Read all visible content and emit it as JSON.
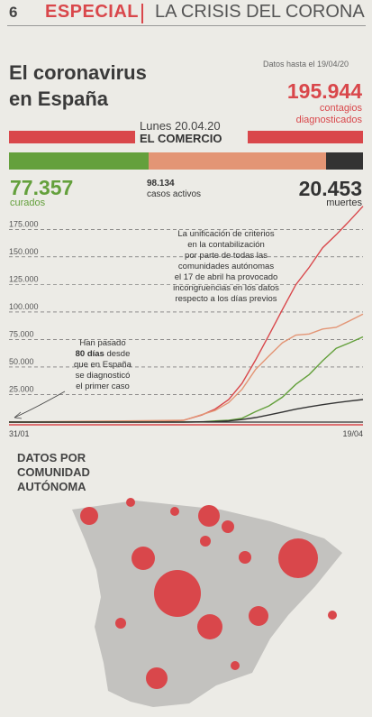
{
  "header": {
    "page_number": "6",
    "section": "ESPECIAL",
    "topic": "LA CRISIS DEL CORONA"
  },
  "title_line1": "El coronavirus",
  "title_line2": "en España",
  "as_of": "Datos hasta el 19/04/20",
  "date_label": "Lunes 20.04.20",
  "newspaper": "EL COMERCIO",
  "totals": {
    "contagios": {
      "value": "195.944",
      "label_line1": "contagios",
      "label_line2": "diagnosticados"
    },
    "curados": {
      "value": "77.357",
      "label": "curados"
    },
    "activos": {
      "value": "98.134",
      "label": "casos activos"
    },
    "muertes": {
      "value": "20.453",
      "label": "muertes"
    }
  },
  "colors": {
    "red": "#d9474b",
    "orange": "#e39575",
    "green": "#64a03c",
    "black": "#333333",
    "grid": "#555555"
  },
  "annotations": {
    "note_lines": [
      "La unificación de criterios",
      "en la contabilización",
      "por parte de todas las",
      "comunidades autónomas",
      "el 17 de abril ha provocado",
      "incongruencias en los datos",
      "respecto a los días previos"
    ],
    "days_line1": "Han pasado",
    "days_value": "80 días",
    "days_line2": "desde",
    "days_lines_rest": [
      "que en España",
      "se diagnosticó",
      "el primer caso"
    ]
  },
  "map_title": [
    "DATOS POR",
    "COMUNIDAD",
    "AUTÓNOMA"
  ],
  "chart_data": [
    {
      "type": "bar",
      "stacked": true,
      "categories": [
        "curados",
        "casos activos",
        "muertes"
      ],
      "values": [
        77357,
        98134,
        20453
      ],
      "total": 195944
    },
    {
      "type": "line",
      "x_labels": [
        "31/01",
        "19/04"
      ],
      "x_range": [
        "2020-01-31",
        "2020-04-19"
      ],
      "ylim": [
        0,
        190000
      ],
      "y_ticks": [
        25000,
        50000,
        75000,
        100000,
        125000,
        150000,
        175000
      ],
      "y_tick_labels": [
        "25.000",
        "50.000",
        "75.000",
        "100.000",
        "125.000",
        "150.000",
        "175.000"
      ],
      "grid": true,
      "series": [
        {
          "key": "contagios",
          "x": [
            "2020-01-31",
            "2020-02-29",
            "2020-03-05",
            "2020-03-10",
            "2020-03-14",
            "2020-03-17",
            "2020-03-20",
            "2020-03-23",
            "2020-03-26",
            "2020-03-29",
            "2020-04-01",
            "2020-04-04",
            "2020-04-07",
            "2020-04-10",
            "2020-04-13",
            "2020-04-16",
            "2020-04-19"
          ],
          "values": [
            1,
            45,
            260,
            1700,
            6400,
            11800,
            20400,
            35100,
            56200,
            78800,
            102100,
            124700,
            140500,
            158300,
            170100,
            182800,
            195944
          ]
        },
        {
          "key": "activos",
          "x": [
            "2020-01-31",
            "2020-03-10",
            "2020-03-17",
            "2020-03-20",
            "2020-03-23",
            "2020-03-26",
            "2020-03-29",
            "2020-04-01",
            "2020-04-04",
            "2020-04-07",
            "2020-04-10",
            "2020-04-13",
            "2020-04-16",
            "2020-04-19"
          ],
          "values": [
            0,
            1600,
            10600,
            17600,
            29700,
            47700,
            60000,
            72000,
            79000,
            80000,
            84500,
            86000,
            92000,
            98134
          ]
        },
        {
          "key": "curados",
          "x": [
            "2020-01-31",
            "2020-03-14",
            "2020-03-17",
            "2020-03-20",
            "2020-03-23",
            "2020-03-26",
            "2020-03-29",
            "2020-04-01",
            "2020-04-04",
            "2020-04-07",
            "2020-04-10",
            "2020-04-13",
            "2020-04-16",
            "2020-04-19"
          ],
          "values": [
            0,
            200,
            1100,
            1600,
            3400,
            9400,
            14700,
            22600,
            34200,
            43200,
            55700,
            67000,
            72000,
            77357
          ]
        },
        {
          "key": "muertes",
          "x": [
            "2020-01-31",
            "2020-03-10",
            "2020-03-17",
            "2020-03-20",
            "2020-03-23",
            "2020-03-26",
            "2020-03-29",
            "2020-04-01",
            "2020-04-04",
            "2020-04-07",
            "2020-04-10",
            "2020-04-13",
            "2020-04-16",
            "2020-04-19"
          ],
          "values": [
            0,
            36,
            530,
            1100,
            2300,
            4100,
            6500,
            9050,
            11700,
            13800,
            15800,
            17500,
            19100,
            20453
          ]
        }
      ]
    }
  ]
}
